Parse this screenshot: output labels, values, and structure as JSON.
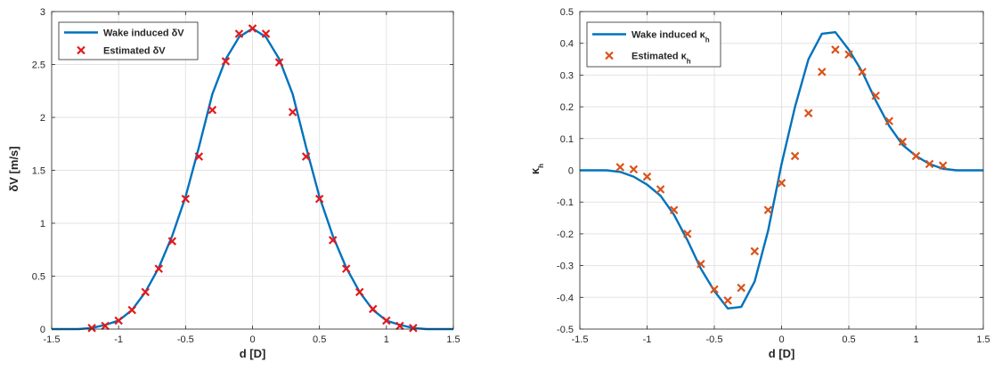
{
  "chart_data": [
    {
      "type": "line",
      "xlabel": "d [D]",
      "ylabel": "δV [m/s]",
      "xlim": [
        -1.5,
        1.5
      ],
      "ylim": [
        0,
        3
      ],
      "xticks": [
        -1.5,
        -1,
        -0.5,
        0,
        0.5,
        1,
        1.5
      ],
      "xtick_labels": [
        "-1.5",
        "-1",
        "-0.5",
        "0",
        "0.5",
        "1",
        "1.5"
      ],
      "yticks": [
        0,
        0.5,
        1,
        1.5,
        2,
        2.5,
        3
      ],
      "ytick_labels": [
        "0",
        "0.5",
        "1",
        "1.5",
        "2",
        "2.5",
        "3"
      ],
      "grid": true,
      "legend_position": "top-left",
      "colors": {
        "line": "#0072BD",
        "marker": "#E31A1C"
      },
      "series": [
        {
          "name": "Wake induced δV",
          "style": "line",
          "x": [
            -1.5,
            -1.4,
            -1.3,
            -1.2,
            -1.1,
            -1.0,
            -0.9,
            -0.8,
            -0.7,
            -0.6,
            -0.5,
            -0.4,
            -0.3,
            -0.2,
            -0.1,
            0.0,
            0.1,
            0.2,
            0.3,
            0.4,
            0.5,
            0.6,
            0.7,
            0.8,
            0.9,
            1.0,
            1.1,
            1.2,
            1.3,
            1.4,
            1.5
          ],
          "y": [
            0.0,
            0.0,
            0.0,
            0.01,
            0.04,
            0.08,
            0.18,
            0.35,
            0.58,
            0.88,
            1.25,
            1.72,
            2.22,
            2.55,
            2.76,
            2.84,
            2.76,
            2.55,
            2.22,
            1.72,
            1.25,
            0.88,
            0.58,
            0.35,
            0.18,
            0.08,
            0.04,
            0.01,
            0.0,
            0.0,
            0.0
          ]
        },
        {
          "name": "Estimated δV",
          "style": "marker",
          "x": [
            -1.2,
            -1.1,
            -1.0,
            -0.9,
            -0.8,
            -0.7,
            -0.6,
            -0.5,
            -0.4,
            -0.3,
            -0.2,
            -0.1,
            0.0,
            0.1,
            0.2,
            0.3,
            0.4,
            0.5,
            0.6,
            0.7,
            0.8,
            0.9,
            1.0,
            1.1,
            1.2
          ],
          "y": [
            0.01,
            0.03,
            0.08,
            0.18,
            0.35,
            0.57,
            0.83,
            1.23,
            1.63,
            2.07,
            2.53,
            2.79,
            2.84,
            2.79,
            2.52,
            2.05,
            1.63,
            1.23,
            0.84,
            0.57,
            0.35,
            0.19,
            0.08,
            0.03,
            0.01
          ]
        }
      ]
    },
    {
      "type": "line",
      "xlabel": "d [D]",
      "ylabel": "κₕ",
      "xlim": [
        -1.5,
        1.5
      ],
      "ylim": [
        -0.5,
        0.5
      ],
      "xticks": [
        -1.5,
        -1,
        -0.5,
        0,
        0.5,
        1,
        1.5
      ],
      "xtick_labels": [
        "-1.5",
        "-1",
        "-0.5",
        "0",
        "0.5",
        "1",
        "1.5"
      ],
      "yticks": [
        -0.5,
        -0.4,
        -0.3,
        -0.2,
        -0.1,
        0,
        0.1,
        0.2,
        0.3,
        0.4,
        0.5
      ],
      "ytick_labels": [
        "-0.5",
        "-0.4",
        "-0.3",
        "-0.2",
        "-0.1",
        "0",
        "0.1",
        "0.2",
        "0.3",
        "0.4",
        "0.5"
      ],
      "grid": true,
      "legend_position": "top-left",
      "colors": {
        "line": "#0072BD",
        "marker": "#D95319"
      },
      "series": [
        {
          "name": "Wake induced κₕ",
          "style": "line",
          "x": [
            -1.5,
            -1.4,
            -1.3,
            -1.2,
            -1.1,
            -1.0,
            -0.9,
            -0.8,
            -0.7,
            -0.6,
            -0.5,
            -0.4,
            -0.3,
            -0.2,
            -0.1,
            0.0,
            0.1,
            0.2,
            0.3,
            0.4,
            0.5,
            0.6,
            0.7,
            0.8,
            0.9,
            1.0,
            1.1,
            1.2,
            1.3,
            1.4,
            1.5
          ],
          "y": [
            0.0,
            0.0,
            0.0,
            -0.005,
            -0.02,
            -0.045,
            -0.08,
            -0.14,
            -0.22,
            -0.31,
            -0.38,
            -0.435,
            -0.43,
            -0.35,
            -0.19,
            0.02,
            0.2,
            0.35,
            0.43,
            0.435,
            0.38,
            0.31,
            0.22,
            0.14,
            0.08,
            0.045,
            0.02,
            0.005,
            0.0,
            0.0,
            0.0
          ]
        },
        {
          "name": "Estimated κₕ",
          "style": "marker",
          "x": [
            -1.2,
            -1.1,
            -1.0,
            -0.9,
            -0.8,
            -0.7,
            -0.6,
            -0.5,
            -0.4,
            -0.3,
            -0.2,
            -0.1,
            0.0,
            0.1,
            0.2,
            0.3,
            0.4,
            0.5,
            0.6,
            0.7,
            0.8,
            0.9,
            1.0,
            1.1,
            1.2
          ],
          "y": [
            0.01,
            0.003,
            -0.02,
            -0.06,
            -0.125,
            -0.2,
            -0.295,
            -0.375,
            -0.41,
            -0.37,
            -0.255,
            -0.125,
            -0.04,
            0.045,
            0.18,
            0.31,
            0.38,
            0.365,
            0.31,
            0.235,
            0.155,
            0.09,
            0.045,
            0.02,
            0.015
          ]
        }
      ]
    }
  ]
}
